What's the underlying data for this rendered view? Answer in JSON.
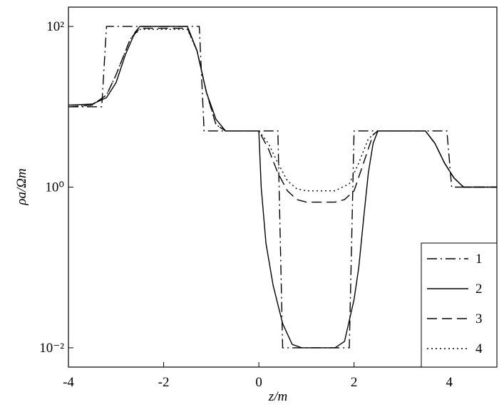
{
  "chart_data": {
    "type": "line",
    "xlabel": "z/m",
    "ylabel": "ρa/Ωm",
    "xlim": [
      -4,
      5
    ],
    "xticks": [
      -4,
      -2,
      0,
      2,
      4
    ],
    "ylim": [
      0.00575,
      174
    ],
    "ylog": true,
    "yticks": [
      {
        "value": 0.01,
        "label": "10⁻²"
      },
      {
        "value": 1,
        "label": "10⁰"
      },
      {
        "value": 100,
        "label": "10²"
      }
    ],
    "legend": "lower right",
    "series": [
      {
        "name": "1",
        "color": "#000000",
        "style": "dashdot",
        "x": [
          -4,
          -3.3,
          -3.2,
          -1.25,
          -1.15,
          0.4,
          0.5,
          1.9,
          2.0,
          3.95,
          4.05,
          5
        ],
        "values": [
          10,
          10,
          100,
          100,
          5,
          5,
          0.01,
          0.01,
          5,
          5,
          1,
          1
        ]
      },
      {
        "name": "2",
        "color": "#000000",
        "style": "solid",
        "x": [
          -4,
          -3.5,
          -3.2,
          -3,
          -2.8,
          -2.6,
          -2.5,
          -1.5,
          -1.3,
          -1.1,
          -0.9,
          -0.7,
          0,
          0.05,
          0.15,
          0.3,
          0.5,
          0.7,
          0.9,
          1.6,
          1.8,
          2.0,
          2.1,
          2.2,
          2.3,
          2.4,
          2.5,
          3.5,
          3.7,
          3.9,
          4.1,
          4.3,
          5
        ],
        "values": [
          10.5,
          10.8,
          13,
          20,
          45,
          85,
          100,
          100,
          50,
          15,
          7,
          5,
          5,
          1,
          0.2,
          0.06,
          0.02,
          0.011,
          0.01,
          0.01,
          0.012,
          0.04,
          0.1,
          0.4,
          1.5,
          3.5,
          5,
          5,
          3.5,
          2,
          1.3,
          1,
          1
        ]
      },
      {
        "name": "3",
        "color": "#000000",
        "style": "dashed",
        "x": [
          -4,
          -3.5,
          -3.2,
          -3,
          -2.7,
          -2.5,
          -1.5,
          -1.3,
          -1.1,
          -0.9,
          -0.7,
          0,
          0.2,
          0.4,
          0.6,
          0.8,
          1,
          1.6,
          1.8,
          2,
          2.2,
          2.4,
          2.5,
          3.5,
          3.7,
          3.9,
          4.1,
          4.3,
          5
        ],
        "values": [
          10,
          10.5,
          14,
          25,
          70,
          95,
          95,
          50,
          15,
          6,
          5,
          5,
          3,
          1.5,
          0.9,
          0.7,
          0.65,
          0.65,
          0.7,
          0.9,
          2,
          4.5,
          5,
          5,
          3.5,
          2,
          1.3,
          1,
          1
        ]
      },
      {
        "name": "4",
        "color": "#000000",
        "style": "dotted",
        "x": [
          -4,
          -3.5,
          -3.2,
          -3,
          -2.7,
          -2.5,
          -1.5,
          -1.3,
          -1.1,
          -0.9,
          -0.7,
          0,
          0.2,
          0.4,
          0.6,
          0.8,
          1,
          1.6,
          1.9,
          2.1,
          2.3,
          2.5,
          3.5,
          3.7,
          3.9,
          4.1,
          4.3,
          5
        ],
        "values": [
          10,
          10.5,
          14,
          25,
          70,
          92,
          92,
          50,
          15,
          6,
          5,
          5,
          3.5,
          2,
          1.2,
          0.95,
          0.9,
          0.9,
          1.1,
          2,
          4,
          5,
          5,
          3.5,
          2,
          1.3,
          1,
          1
        ]
      }
    ]
  }
}
